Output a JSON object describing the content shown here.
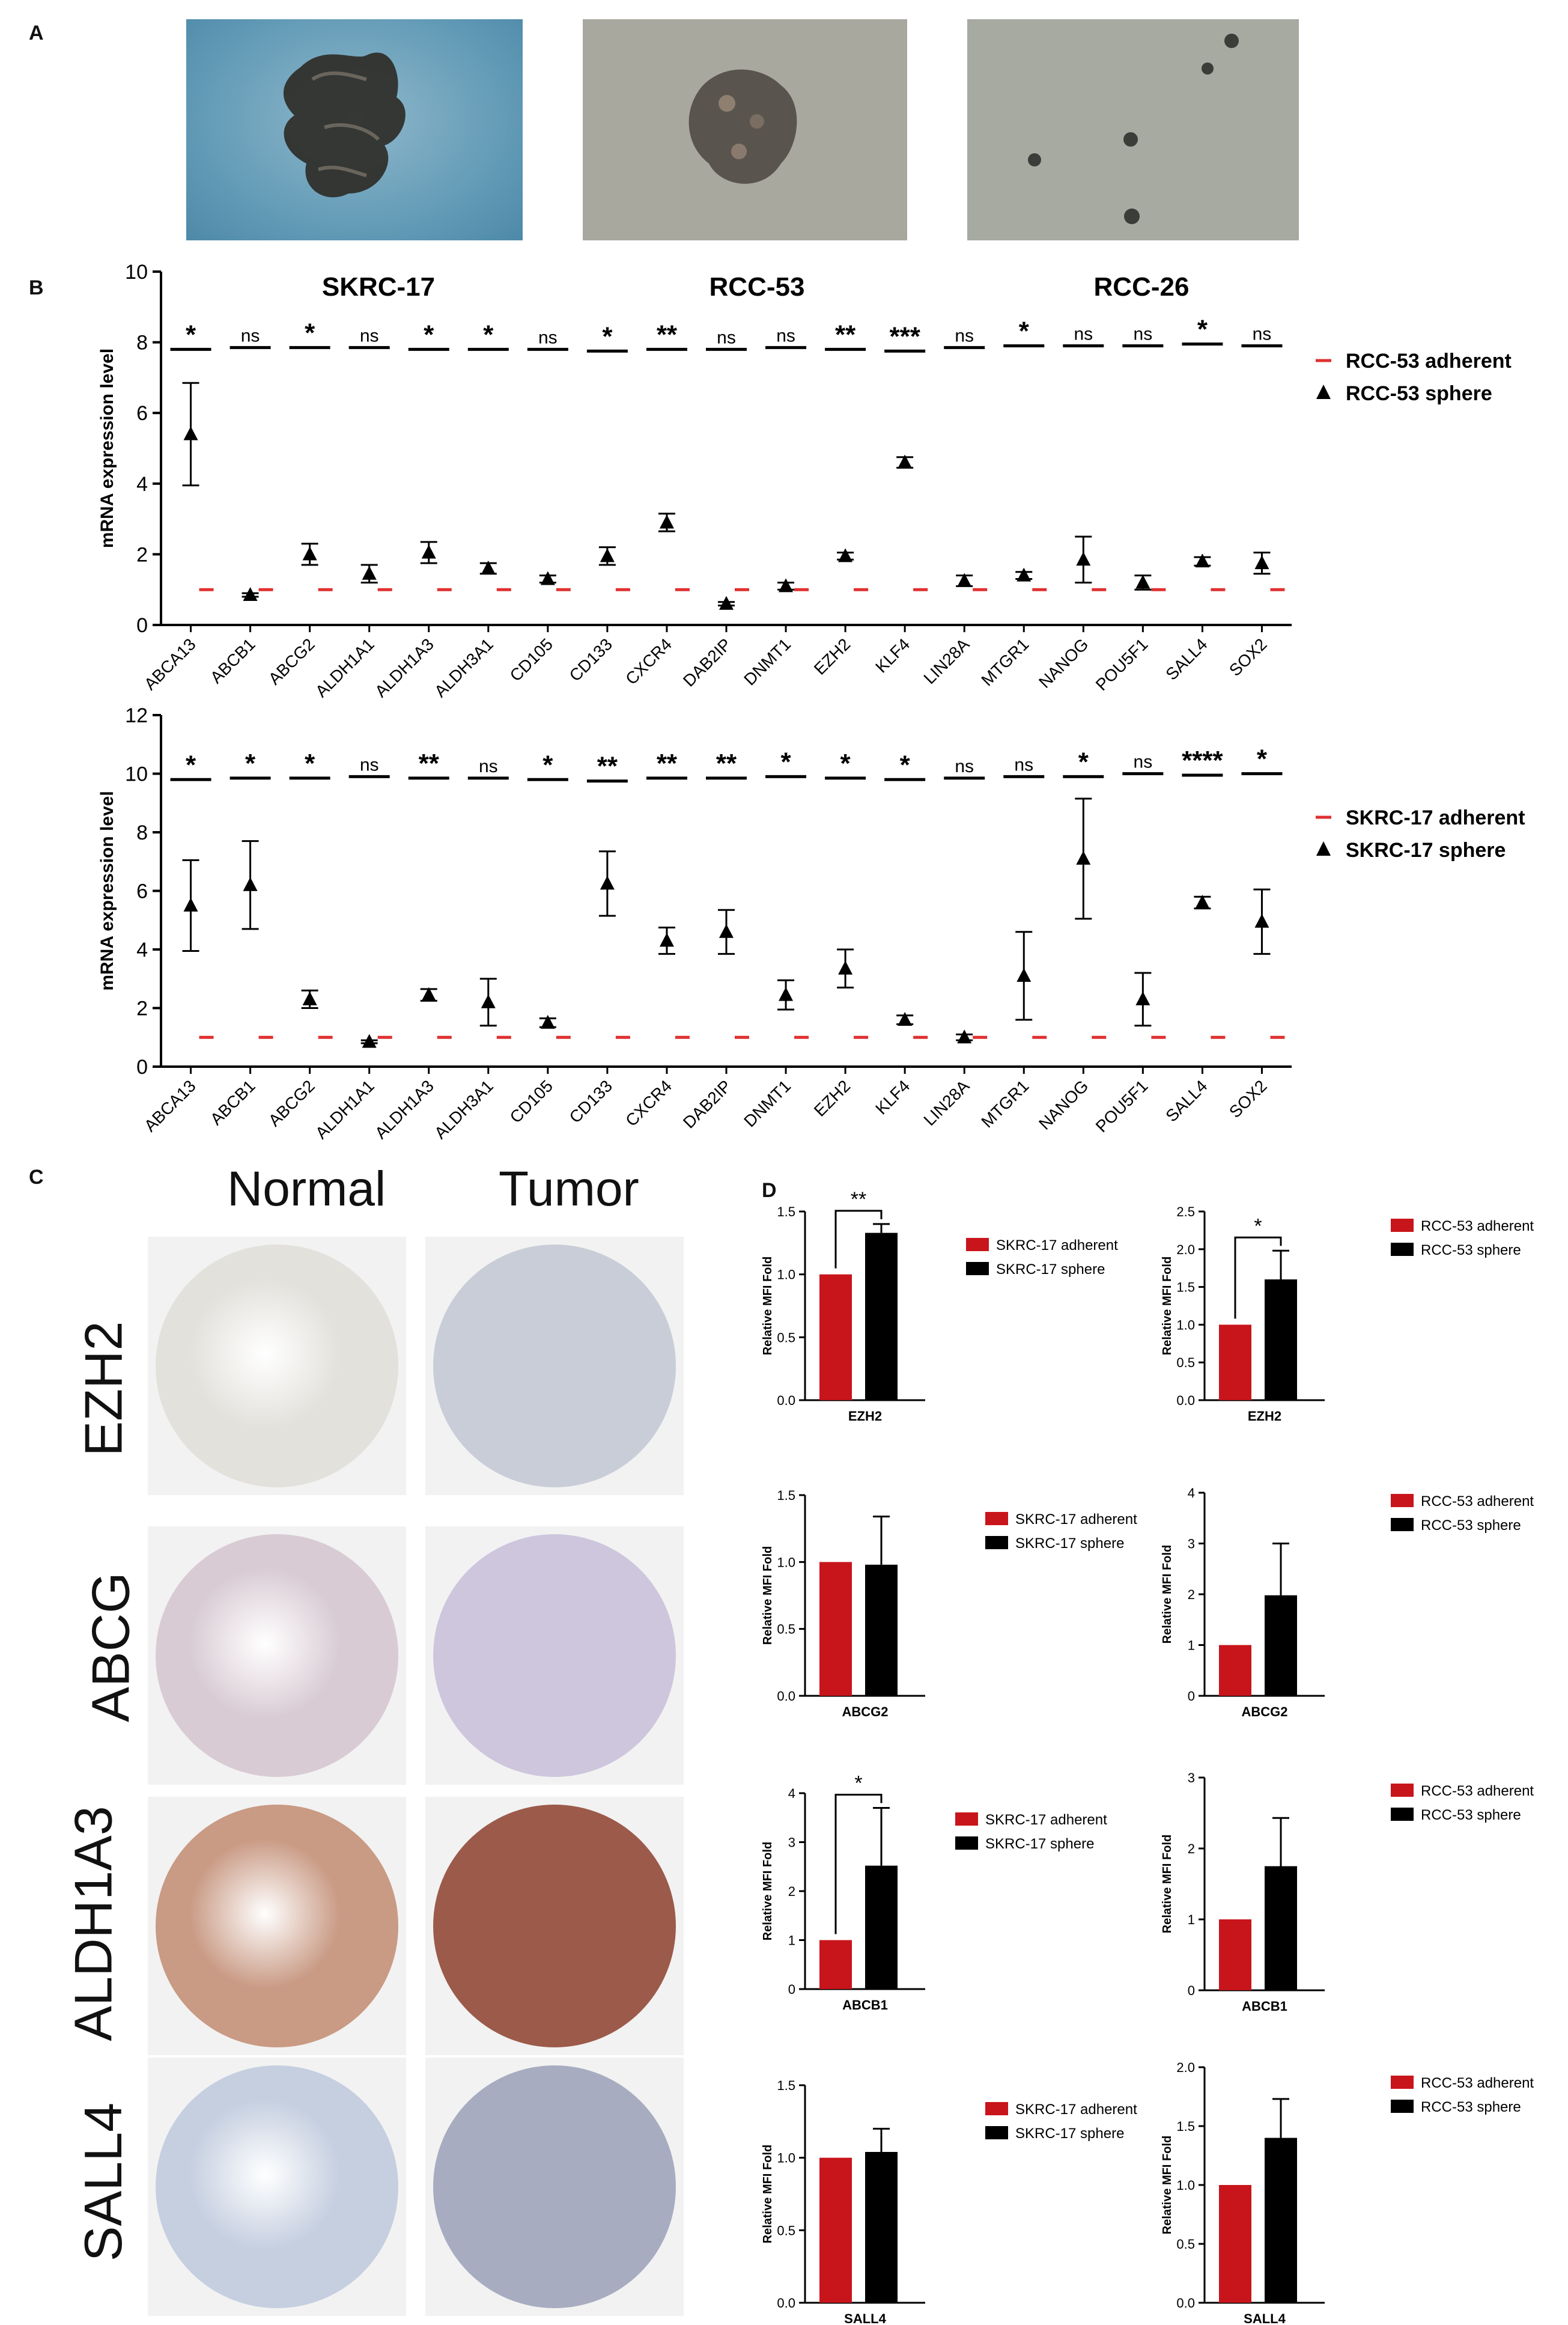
{
  "panels": {
    "a": "A",
    "b": "B",
    "c": "C",
    "d": "D"
  },
  "photos": [
    {
      "name": "large-sphere-photo",
      "bg": "#5f98b4",
      "fg": "#2b2a25"
    },
    {
      "name": "small-sphere-photo",
      "bg": "#a9a89f",
      "fg": "#4b4640"
    },
    {
      "name": "single-cells-photo",
      "bg": "#a6aaa1",
      "fg": "#3a3d38"
    }
  ],
  "cell_lines": [
    "SKRC-17",
    "RCC-53",
    "RCC-26"
  ],
  "colors": {
    "adherent": "#c8151b",
    "sphere": "#000000",
    "dashes": "#e03030"
  },
  "chart_data": [
    {
      "id": "b-top",
      "type": "scatter",
      "ylabel": "mRNA expression level",
      "ylim": [
        0,
        10
      ],
      "yticks": [
        0,
        2,
        4,
        6,
        8,
        10
      ],
      "categories": [
        "ABCA13",
        "ABCB1",
        "ABCG2",
        "ALDH1A1",
        "ALDH1A3",
        "ALDH3A1",
        "CD105",
        "CD133",
        "CXCR4",
        "DAB2IP",
        "DNMT1",
        "EZH2",
        "KLF4",
        "LIN28A",
        "MTGR1",
        "NANOG",
        "POU5F1",
        "SALL4",
        "SOX2"
      ],
      "series": [
        {
          "name": "RCC-53 adherent",
          "marker": "dash",
          "values": [
            1,
            1,
            1,
            1,
            1,
            1,
            1,
            1,
            1,
            1,
            1,
            1,
            1,
            1,
            1,
            1,
            1,
            1,
            1
          ]
        },
        {
          "name": "RCC-53 sphere",
          "marker": "triangle",
          "values": [
            5.4,
            0.85,
            2.0,
            1.45,
            2.05,
            1.6,
            1.3,
            1.95,
            2.9,
            0.6,
            1.1,
            1.95,
            4.6,
            1.25,
            1.4,
            1.85,
            1.2,
            1.8,
            1.75
          ],
          "err": [
            1.45,
            0.05,
            0.3,
            0.25,
            0.3,
            0.15,
            0.1,
            0.25,
            0.25,
            0.05,
            0.1,
            0.1,
            0.15,
            0.15,
            0.1,
            0.65,
            0.2,
            0.12,
            0.3
          ]
        }
      ],
      "significance": [
        "*",
        "ns",
        "*",
        "ns",
        "*",
        "*",
        "ns",
        "*",
        "**",
        "ns",
        "ns",
        "**",
        "***",
        "ns",
        "*",
        "ns",
        "ns",
        "*",
        "ns"
      ],
      "sig_y": [
        7.8,
        7.85,
        7.85,
        7.85,
        7.8,
        7.8,
        7.8,
        7.75,
        7.8,
        7.8,
        7.85,
        7.8,
        7.75,
        7.85,
        7.9,
        7.9,
        7.9,
        7.95,
        7.9
      ]
    },
    {
      "id": "b-bottom",
      "type": "scatter",
      "ylabel": "mRNA expression level",
      "ylim": [
        0,
        12
      ],
      "yticks": [
        0,
        2,
        4,
        6,
        8,
        10,
        12
      ],
      "categories": [
        "ABCA13",
        "ABCB1",
        "ABCG2",
        "ALDH1A1",
        "ALDH1A3",
        "ALDH3A1",
        "CD105",
        "CD133",
        "CXCR4",
        "DAB2IP",
        "DNMT1",
        "EZH2",
        "KLF4",
        "LIN28A",
        "MTGR1",
        "NANOG",
        "POU5F1",
        "SALL4",
        "SOX2"
      ],
      "series": [
        {
          "name": "SKRC-17 adherent",
          "marker": "dash",
          "values": [
            1,
            1,
            1,
            1,
            1,
            1,
            1,
            1,
            1,
            1,
            1,
            1,
            1,
            1,
            1,
            1,
            1,
            1,
            1
          ]
        },
        {
          "name": "SKRC-17 sphere",
          "marker": "triangle",
          "values": [
            5.5,
            6.2,
            2.3,
            0.85,
            2.45,
            2.2,
            1.5,
            6.25,
            4.3,
            4.6,
            2.45,
            3.35,
            1.6,
            1.0,
            3.1,
            7.1,
            2.3,
            5.6,
            4.95
          ],
          "err": [
            1.55,
            1.5,
            0.3,
            0.05,
            0.2,
            0.8,
            0.15,
            1.1,
            0.45,
            0.75,
            0.5,
            0.65,
            0.15,
            0.1,
            1.5,
            2.05,
            0.9,
            0.2,
            1.1
          ]
        }
      ],
      "significance": [
        "*",
        "*",
        "*",
        "ns",
        "**",
        "ns",
        "*",
        "**",
        "**",
        "**",
        "*",
        "*",
        "*",
        "ns",
        "ns",
        "*",
        "ns",
        "****",
        "*"
      ],
      "sig_y": [
        9.8,
        9.85,
        9.85,
        9.9,
        9.85,
        9.85,
        9.8,
        9.75,
        9.85,
        9.85,
        9.9,
        9.85,
        9.8,
        9.85,
        9.9,
        9.9,
        10.0,
        9.95,
        10.0
      ]
    },
    {
      "id": "d-1",
      "type": "bar",
      "categories": [
        "EZH2"
      ],
      "ylabel": "Relative MFI Fold",
      "ylim": [
        0,
        1.5
      ],
      "yticks": [
        "0.0",
        "0.5",
        "1.0",
        "1.5"
      ],
      "series": [
        {
          "name": "SKRC-17 adherent",
          "values": [
            1.0
          ]
        },
        {
          "name": "SKRC-17 sphere",
          "values": [
            1.33
          ],
          "err": [
            0.07
          ]
        }
      ],
      "sig": "**"
    },
    {
      "id": "d-2",
      "type": "bar",
      "categories": [
        "EZH2"
      ],
      "ylabel": "Relative MFI Fold",
      "ylim": [
        0,
        2.5
      ],
      "yticks": [
        "0.0",
        "0.5",
        "1.0",
        "1.5",
        "2.0",
        "2.5"
      ],
      "series": [
        {
          "name": "RCC-53 adherent",
          "values": [
            1.0
          ]
        },
        {
          "name": "RCC-53 sphere",
          "values": [
            1.6
          ],
          "err": [
            0.38
          ]
        }
      ],
      "sig": "*"
    },
    {
      "id": "d-3",
      "type": "bar",
      "categories": [
        "ABCG2"
      ],
      "ylabel": "Relative MFI Fold",
      "ylim": [
        0,
        1.5
      ],
      "yticks": [
        "0.0",
        "0.5",
        "1.0",
        "1.5"
      ],
      "series": [
        {
          "name": "SKRC-17 adherent",
          "values": [
            1.0
          ]
        },
        {
          "name": "SKRC-17 sphere",
          "values": [
            0.98
          ],
          "err": [
            0.36
          ]
        }
      ],
      "sig": ""
    },
    {
      "id": "d-4",
      "type": "bar",
      "categories": [
        "ABCG2"
      ],
      "ylabel": "Relative MFI Fold",
      "ylim": [
        0,
        4
      ],
      "yticks": [
        "0",
        "1",
        "2",
        "3",
        "4"
      ],
      "series": [
        {
          "name": "RCC-53 adherent",
          "values": [
            1.0
          ]
        },
        {
          "name": "RCC-53 sphere",
          "values": [
            1.98
          ],
          "err": [
            1.02
          ]
        }
      ],
      "sig": ""
    },
    {
      "id": "d-5",
      "type": "bar",
      "categories": [
        "ABCB1"
      ],
      "ylabel": "Relative MFI Fold",
      "ylim": [
        0,
        4
      ],
      "yticks": [
        "0",
        "1",
        "2",
        "3",
        "4"
      ],
      "series": [
        {
          "name": "SKRC-17 adherent",
          "values": [
            1.0
          ]
        },
        {
          "name": "SKRC-17 sphere",
          "values": [
            2.52
          ],
          "err": [
            1.18
          ]
        }
      ],
      "sig": "*"
    },
    {
      "id": "d-6",
      "type": "bar",
      "categories": [
        "ABCB1"
      ],
      "ylabel": "Relative MFI Fold",
      "ylim": [
        0,
        3
      ],
      "yticks": [
        "0",
        "1",
        "2",
        "3"
      ],
      "series": [
        {
          "name": "RCC-53 adherent",
          "values": [
            1.0
          ]
        },
        {
          "name": "RCC-53 sphere",
          "values": [
            1.75
          ],
          "err": [
            0.68
          ]
        }
      ],
      "sig": ""
    },
    {
      "id": "d-7",
      "type": "bar",
      "categories": [
        "SALL4"
      ],
      "ylabel": "Relative MFI Fold",
      "ylim": [
        0,
        1.5
      ],
      "yticks": [
        "0.0",
        "0.5",
        "1.0",
        "1.5"
      ],
      "series": [
        {
          "name": "SKRC-17 adherent",
          "values": [
            1.0
          ]
        },
        {
          "name": "SKRC-17 sphere",
          "values": [
            1.04
          ],
          "err": [
            0.16
          ]
        }
      ],
      "sig": ""
    },
    {
      "id": "d-8",
      "type": "bar",
      "categories": [
        "SALL4"
      ],
      "ylabel": "Relative MFI Fold",
      "ylim": [
        0,
        2.0
      ],
      "yticks": [
        "0.0",
        "0.5",
        "1.0",
        "1.5",
        "2.0"
      ],
      "series": [
        {
          "name": "RCC-53 adherent",
          "values": [
            1.0
          ]
        },
        {
          "name": "RCC-53 sphere",
          "values": [
            1.4
          ],
          "err": [
            0.33
          ]
        }
      ],
      "sig": ""
    }
  ],
  "tma": {
    "normal_label": "Normal",
    "tumor_label": "Tumor",
    "rows": [
      {
        "marker": "EZH2",
        "normal_color": "#e3e1dc",
        "tumor_color": "#c9cdd8"
      },
      {
        "marker": "ABCG",
        "normal_color": "#d9cbd4",
        "tumor_color": "#cdc6dd"
      },
      {
        "marker": "ALDH1A3",
        "normal_color": "#c99a84",
        "tumor_color": "#9c5a4a"
      },
      {
        "marker": "SALL4",
        "normal_color": "#c5cfe0",
        "tumor_color": "#a8acc0"
      }
    ]
  }
}
